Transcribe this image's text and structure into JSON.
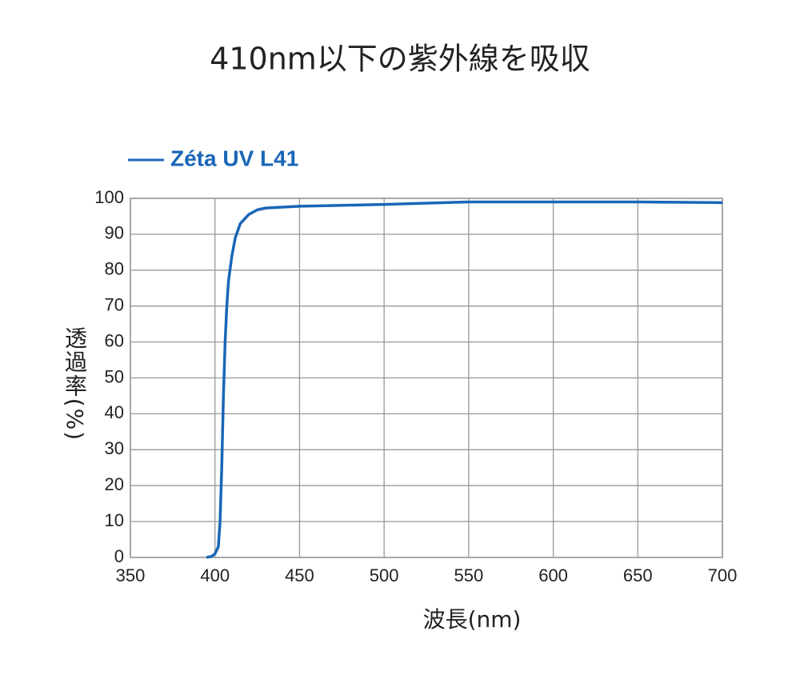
{
  "chart_data": {
    "type": "line",
    "title": "410nm以下の紫外線を吸収",
    "x_label": "波長(nm)",
    "y_label": "透過率(%)",
    "xlim": [
      350,
      700
    ],
    "ylim": [
      0,
      100
    ],
    "xticks": [
      350,
      400,
      450,
      500,
      550,
      600,
      650,
      700
    ],
    "yticks": [
      0,
      10,
      20,
      30,
      40,
      50,
      60,
      70,
      80,
      90,
      100
    ],
    "grid": true,
    "legend": "top-left",
    "x": [
      395,
      398,
      400,
      402,
      403,
      404,
      405,
      406,
      407,
      408,
      410,
      412,
      415,
      420,
      425,
      430,
      450,
      500,
      550,
      600,
      650,
      700
    ],
    "series": [
      {
        "name": "Zéta UV L41",
        "color": "#1a66b8",
        "values": [
          0,
          0.3,
          1,
          3,
          10,
          25,
          45,
          60,
          70,
          77,
          84,
          89,
          93,
          95.5,
          96.8,
          97.3,
          97.8,
          98.3,
          99,
          99,
          99,
          98.8
        ]
      }
    ]
  }
}
